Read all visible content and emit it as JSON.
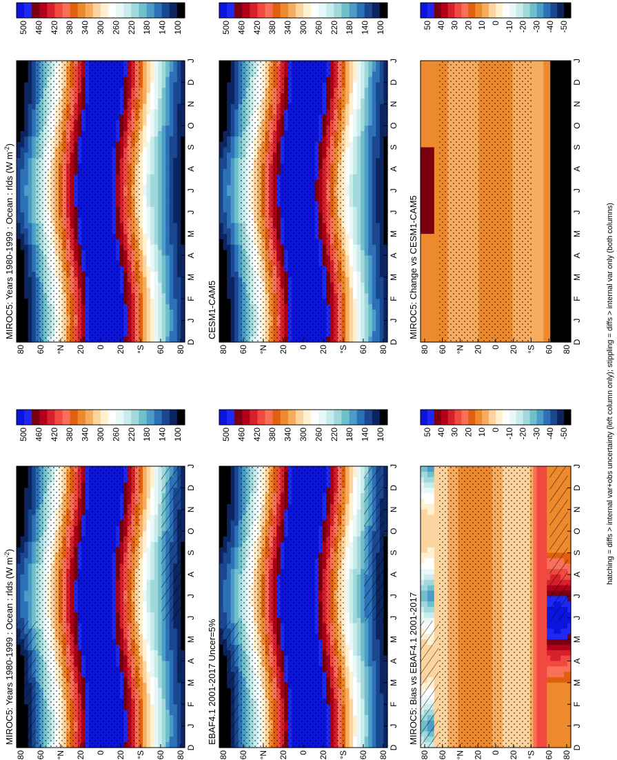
{
  "figure": {
    "footnote": "hatching = diffs > internal var+obs uncertainty (left column only); stippling = diffs > internal var only (both columns)",
    "month_ticks": [
      "D",
      "J",
      "F",
      "M",
      "A",
      "M",
      "J",
      "J",
      "A",
      "S",
      "O",
      "N",
      "D",
      "J"
    ],
    "lat_ticks": [
      "80",
      "60",
      "°N",
      "20",
      "0",
      "20",
      "°S",
      "60",
      "80"
    ]
  },
  "colorbars": {
    "absolute": [
      "500",
      "460",
      "420",
      "380",
      "340",
      "300",
      "260",
      "220",
      "180",
      "140",
      "100"
    ],
    "difference": [
      "50",
      "40",
      "30",
      "20",
      "10",
      "0",
      "-10",
      "-20",
      "-30",
      "-40",
      "-50"
    ],
    "absolute_colors": [
      "#0a14dc",
      "#1e28f0",
      "#7a0010",
      "#b2001a",
      "#d8202c",
      "#f04a40",
      "#f87058",
      "#e06010",
      "#ee8a2e",
      "#f6ac5e",
      "#fcd4a0",
      "#fff0d0",
      "#ffffff",
      "#e8f8f8",
      "#c8ecec",
      "#a0d8dc",
      "#70c0cc",
      "#4c9cc8",
      "#2c70b8",
      "#1a4890",
      "#0c2460",
      "#000000"
    ],
    "difference_colors": [
      "#0a14dc",
      "#1e28f0",
      "#7a0010",
      "#b2001a",
      "#d8202c",
      "#f04a40",
      "#f87058",
      "#e06010",
      "#ee8a2e",
      "#f6ac5e",
      "#fcd4a0",
      "#fff0d0",
      "#ffffff",
      "#e8f8f8",
      "#c8ecec",
      "#a0d8dc",
      "#70c0cc",
      "#4c9cc8",
      "#2c70b8",
      "#1a4890",
      "#0c2460",
      "#000000"
    ]
  },
  "chart_data": [
    {
      "type": "heatmap",
      "panel": "top-left",
      "title": "MIROC5: Years 1980-1999 : Ocean : rlds (W m",
      "title_superscript": "-2",
      "title_suffix": ")",
      "variable": "rlds",
      "units": "W m-2",
      "x": "latitude",
      "y": "month",
      "colorbar": "absolute",
      "hatching": true,
      "stippling": true
    },
    {
      "type": "heatmap",
      "panel": "middle-left",
      "title": "EBAF4.1 2001-2017 Uncer=5%",
      "colorbar": "absolute",
      "hatching": true,
      "stippling": true
    },
    {
      "type": "heatmap",
      "panel": "bottom-left",
      "title": "MIROC5: Bias vs EBAF4.1 2001-2017",
      "colorbar": "difference",
      "hatching": true,
      "stippling": true
    },
    {
      "type": "heatmap",
      "panel": "top-right",
      "title": "MIROC5: Years 1980-1999 : Ocean : rlds (W m",
      "title_superscript": "-2",
      "title_suffix": ")",
      "colorbar": "absolute",
      "hatching": false,
      "stippling": true
    },
    {
      "type": "heatmap",
      "panel": "middle-right",
      "title": "CESM1-CAM5",
      "colorbar": "absolute",
      "hatching": false,
      "stippling": true
    },
    {
      "type": "heatmap",
      "panel": "bottom-right",
      "title": "MIROC5: Change vs CESM1-CAM5",
      "colorbar": "difference",
      "hatching": false,
      "stippling": true
    }
  ]
}
